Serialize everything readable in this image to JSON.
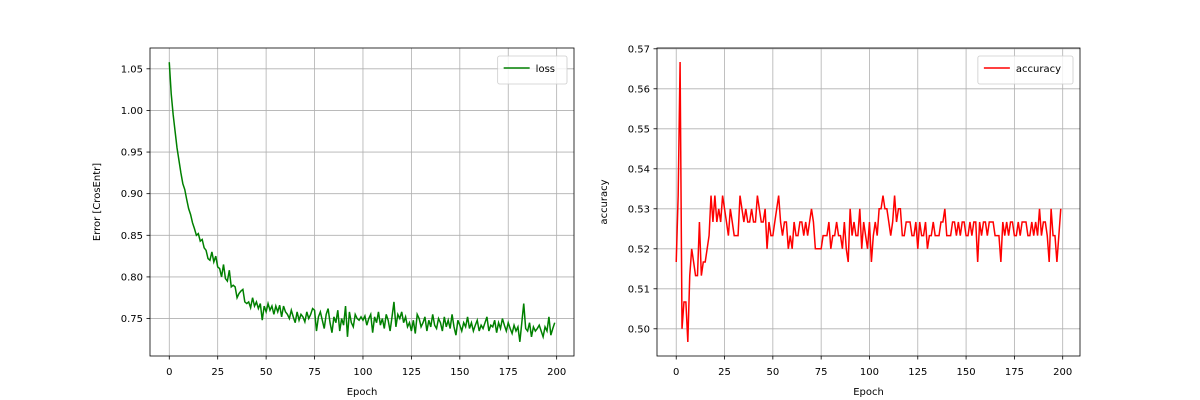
{
  "chart_data": [
    {
      "type": "line",
      "xlabel": "Epoch",
      "ylabel": "Error [CrosEntr]",
      "grid": true,
      "legend": "upper right",
      "x": [
        0,
        1,
        2,
        3,
        4,
        5,
        6,
        7,
        8,
        9,
        10,
        11,
        12,
        13,
        14,
        15,
        16,
        17,
        18,
        19,
        20,
        21,
        22,
        23,
        24,
        25,
        26,
        27,
        28,
        29,
        30,
        31,
        32,
        33,
        34,
        35,
        36,
        37,
        38,
        39,
        40,
        41,
        42,
        43,
        44,
        45,
        46,
        47,
        48,
        49,
        50,
        51,
        52,
        53,
        54,
        55,
        56,
        57,
        58,
        59,
        60,
        61,
        62,
        63,
        64,
        65,
        66,
        67,
        68,
        69,
        70,
        71,
        72,
        73,
        74,
        75,
        76,
        77,
        78,
        79,
        80,
        81,
        82,
        83,
        84,
        85,
        86,
        87,
        88,
        89,
        90,
        91,
        92,
        93,
        94,
        95,
        96,
        97,
        98,
        99,
        100,
        101,
        102,
        103,
        104,
        105,
        106,
        107,
        108,
        109,
        110,
        111,
        112,
        113,
        114,
        115,
        116,
        117,
        118,
        119,
        120,
        121,
        122,
        123,
        124,
        125,
        126,
        127,
        128,
        129,
        130,
        131,
        132,
        133,
        134,
        135,
        136,
        137,
        138,
        139,
        140,
        141,
        142,
        143,
        144,
        145,
        146,
        147,
        148,
        149,
        150,
        151,
        152,
        153,
        154,
        155,
        156,
        157,
        158,
        159,
        160,
        161,
        162,
        163,
        164,
        165,
        166,
        167,
        168,
        169,
        170,
        171,
        172,
        173,
        174,
        175,
        176,
        177,
        178,
        179,
        180,
        181,
        182,
        183,
        184,
        185,
        186,
        187,
        188,
        189,
        190,
        191,
        192,
        193,
        194,
        195,
        196,
        197,
        198,
        199
      ],
      "series": [
        {
          "name": "loss",
          "color": "#008000",
          "values": [
            1.058,
            1.02,
            0.995,
            0.975,
            0.955,
            0.94,
            0.925,
            0.912,
            0.905,
            0.893,
            0.882,
            0.875,
            0.865,
            0.858,
            0.85,
            0.852,
            0.843,
            0.845,
            0.835,
            0.832,
            0.822,
            0.82,
            0.83,
            0.818,
            0.825,
            0.812,
            0.81,
            0.8,
            0.815,
            0.798,
            0.795,
            0.808,
            0.788,
            0.79,
            0.788,
            0.775,
            0.78,
            0.783,
            0.785,
            0.77,
            0.768,
            0.77,
            0.763,
            0.775,
            0.765,
            0.77,
            0.762,
            0.768,
            0.748,
            0.765,
            0.758,
            0.768,
            0.76,
            0.765,
            0.755,
            0.765,
            0.758,
            0.766,
            0.752,
            0.765,
            0.758,
            0.755,
            0.75,
            0.76,
            0.752,
            0.745,
            0.758,
            0.748,
            0.755,
            0.752,
            0.746,
            0.758,
            0.75,
            0.755,
            0.762,
            0.76,
            0.735,
            0.752,
            0.758,
            0.748,
            0.738,
            0.755,
            0.762,
            0.745,
            0.733,
            0.752,
            0.745,
            0.76,
            0.735,
            0.75,
            0.742,
            0.765,
            0.728,
            0.758,
            0.745,
            0.74,
            0.755,
            0.75,
            0.748,
            0.752,
            0.748,
            0.753,
            0.742,
            0.75,
            0.755,
            0.733,
            0.752,
            0.745,
            0.758,
            0.742,
            0.75,
            0.738,
            0.755,
            0.748,
            0.735,
            0.752,
            0.77,
            0.74,
            0.755,
            0.75,
            0.758,
            0.745,
            0.752,
            0.74,
            0.745,
            0.735,
            0.748,
            0.732,
            0.755,
            0.75,
            0.74,
            0.745,
            0.752,
            0.735,
            0.748,
            0.74,
            0.755,
            0.742,
            0.738,
            0.75,
            0.745,
            0.735,
            0.752,
            0.74,
            0.748,
            0.738,
            0.755,
            0.74,
            0.73,
            0.748,
            0.742,
            0.735,
            0.745,
            0.74,
            0.752,
            0.738,
            0.745,
            0.735,
            0.742,
            0.748,
            0.735,
            0.742,
            0.738,
            0.745,
            0.752,
            0.735,
            0.742,
            0.74,
            0.748,
            0.733,
            0.745,
            0.738,
            0.75,
            0.742,
            0.735,
            0.745,
            0.738,
            0.732,
            0.742,
            0.735,
            0.74,
            0.722,
            0.745,
            0.768,
            0.738,
            0.735,
            0.745,
            0.728,
            0.74,
            0.735,
            0.738,
            0.742,
            0.735,
            0.728,
            0.74,
            0.735,
            0.752,
            0.73,
            0.738,
            0.745
          ]
        }
      ],
      "xlim": [
        -9.95,
        208.95
      ],
      "xticks": [
        0,
        25,
        50,
        75,
        100,
        125,
        150,
        175,
        200
      ],
      "ylim": [
        0.705,
        1.075
      ],
      "yticks": [
        0.75,
        {
          "value": 0.8,
          "label": "0.80"
        },
        0.85,
        {
          "value": 0.9,
          "label": "0.90"
        },
        0.95,
        {
          "value": 1.0,
          "label": "1.00"
        },
        1.05
      ]
    },
    {
      "type": "line",
      "xlabel": "Epoch",
      "ylabel": "accuracy",
      "grid": true,
      "legend": "upper right",
      "x": [
        0,
        1,
        2,
        3,
        4,
        5,
        6,
        7,
        8,
        9,
        10,
        11,
        12,
        13,
        14,
        15,
        16,
        17,
        18,
        19,
        20,
        21,
        22,
        23,
        24,
        25,
        26,
        27,
        28,
        29,
        30,
        31,
        32,
        33,
        34,
        35,
        36,
        37,
        38,
        39,
        40,
        41,
        42,
        43,
        44,
        45,
        46,
        47,
        48,
        49,
        50,
        51,
        52,
        53,
        54,
        55,
        56,
        57,
        58,
        59,
        60,
        61,
        62,
        63,
        64,
        65,
        66,
        67,
        68,
        69,
        70,
        71,
        72,
        73,
        74,
        75,
        76,
        77,
        78,
        79,
        80,
        81,
        82,
        83,
        84,
        85,
        86,
        87,
        88,
        89,
        90,
        91,
        92,
        93,
        94,
        95,
        96,
        97,
        98,
        99,
        100,
        101,
        102,
        103,
        104,
        105,
        106,
        107,
        108,
        109,
        110,
        111,
        112,
        113,
        114,
        115,
        116,
        117,
        118,
        119,
        120,
        121,
        122,
        123,
        124,
        125,
        126,
        127,
        128,
        129,
        130,
        131,
        132,
        133,
        134,
        135,
        136,
        137,
        138,
        139,
        140,
        141,
        142,
        143,
        144,
        145,
        146,
        147,
        148,
        149,
        150,
        151,
        152,
        153,
        154,
        155,
        156,
        157,
        158,
        159,
        160,
        161,
        162,
        163,
        164,
        165,
        166,
        167,
        168,
        169,
        170,
        171,
        172,
        173,
        174,
        175,
        176,
        177,
        178,
        179,
        180,
        181,
        182,
        183,
        184,
        185,
        186,
        187,
        188,
        189,
        190,
        191,
        192,
        193,
        194,
        195,
        196,
        197,
        198,
        199
      ],
      "series": [
        {
          "name": "accuracy",
          "color": "#ff0000",
          "values": [
            0.5167,
            0.5333,
            0.5667,
            0.5,
            0.5067,
            0.5067,
            0.4967,
            0.5133,
            0.52,
            0.5167,
            0.5133,
            0.5133,
            0.5267,
            0.5133,
            0.5167,
            0.5167,
            0.52,
            0.5233,
            0.5333,
            0.5267,
            0.5333,
            0.5267,
            0.53,
            0.5267,
            0.5333,
            0.53,
            0.5267,
            0.5233,
            0.53,
            0.5267,
            0.5233,
            0.5233,
            0.5233,
            0.5333,
            0.53,
            0.5267,
            0.53,
            0.5267,
            0.5267,
            0.53,
            0.5267,
            0.5267,
            0.5333,
            0.53,
            0.5267,
            0.5267,
            0.53,
            0.52,
            0.5267,
            0.5233,
            0.5233,
            0.5267,
            0.53,
            0.5333,
            0.5267,
            0.5233,
            0.5267,
            0.5267,
            0.52,
            0.5233,
            0.52,
            0.5267,
            0.5233,
            0.5233,
            0.5267,
            0.5267,
            0.5233,
            0.5267,
            0.5233,
            0.5267,
            0.53,
            0.5267,
            0.52,
            0.52,
            0.52,
            0.52,
            0.5233,
            0.5233,
            0.5233,
            0.5267,
            0.52,
            0.5233,
            0.5233,
            0.5267,
            0.5233,
            0.5233,
            0.52,
            0.5267,
            0.52,
            0.5167,
            0.53,
            0.5233,
            0.5267,
            0.5233,
            0.5233,
            0.53,
            0.52,
            0.5267,
            0.5233,
            0.52,
            0.5267,
            0.5167,
            0.5233,
            0.5267,
            0.5233,
            0.53,
            0.53,
            0.5333,
            0.53,
            0.53,
            0.5267,
            0.5233,
            0.5267,
            0.5333,
            0.5267,
            0.53,
            0.53,
            0.5233,
            0.5233,
            0.5267,
            0.5267,
            0.5267,
            0.5233,
            0.5233,
            0.5267,
            0.52,
            0.5267,
            0.5233,
            0.5233,
            0.5267,
            0.52,
            0.5233,
            0.5233,
            0.5267,
            0.5233,
            0.5233,
            0.5233,
            0.5267,
            0.5267,
            0.53,
            0.5233,
            0.5233,
            0.5233,
            0.5267,
            0.5267,
            0.5233,
            0.5267,
            0.5233,
            0.5267,
            0.5267,
            0.5233,
            0.5233,
            0.5267,
            0.5233,
            0.5267,
            0.5267,
            0.5167,
            0.5267,
            0.5233,
            0.5267,
            0.5267,
            0.5233,
            0.5267,
            0.5267,
            0.5267,
            0.5233,
            0.5233,
            0.5233,
            0.5167,
            0.5267,
            0.5233,
            0.5267,
            0.5233,
            0.5267,
            0.5267,
            0.5233,
            0.5233,
            0.5267,
            0.5233,
            0.5267,
            0.5267,
            0.5267,
            0.5233,
            0.5233,
            0.5267,
            0.5233,
            0.5267,
            0.5233,
            0.53,
            0.5233,
            0.5267,
            0.5267,
            0.5233,
            0.5167,
            0.53,
            0.5233,
            0.5233,
            0.5167,
            0.5233,
            0.53
          ]
        }
      ],
      "xlim": [
        -9.95,
        208.95
      ],
      "xticks": [
        0,
        25,
        50,
        75,
        100,
        125,
        150,
        175,
        200
      ],
      "ylim": [
        0.4932,
        0.5702
      ],
      "yticks": [
        {
          "value": 0.5,
          "label": "0.50"
        },
        0.51,
        0.52,
        0.53,
        0.54,
        0.55,
        0.56,
        0.57
      ]
    }
  ]
}
